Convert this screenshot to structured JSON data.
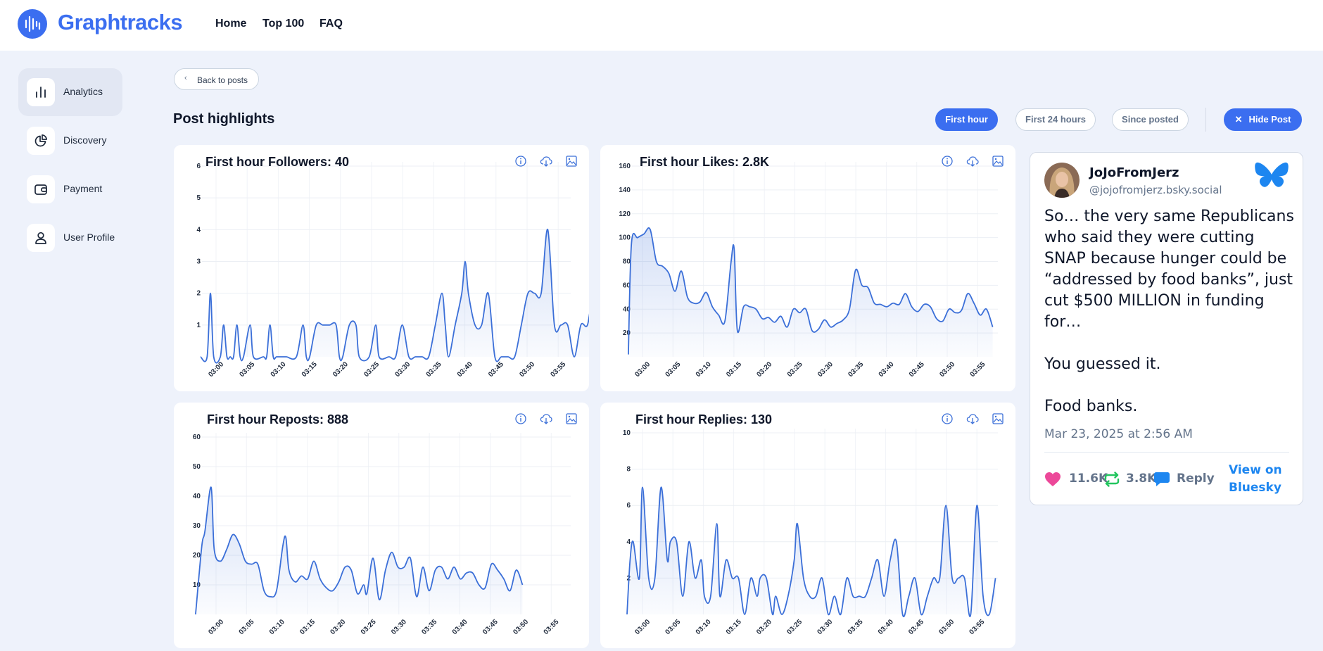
{
  "brand": {
    "name": "Graphtracks",
    "logo_icon": "equalizer-mic-icon",
    "accent": "#3b6ef0"
  },
  "nav": {
    "items": [
      "Home",
      "Top 100",
      "FAQ"
    ]
  },
  "sidebar": {
    "items": [
      {
        "label": "Analytics",
        "icon": "bar-chart-icon",
        "active": true
      },
      {
        "label": "Discovery",
        "icon": "pie-chart-icon",
        "active": false
      },
      {
        "label": "Payment",
        "icon": "wallet-icon",
        "active": false
      },
      {
        "label": "User Profile",
        "icon": "user-icon",
        "active": false
      }
    ]
  },
  "back_label": "Back to posts",
  "page_title": "Post highlights",
  "filters": {
    "first_hour": "First hour",
    "first_24": "First 24 hours",
    "since_posted": "Since posted",
    "hide_post": "Hide Post",
    "selected": "First hour"
  },
  "card_tools": [
    "info-icon",
    "cloud-download-icon",
    "image-download-icon"
  ],
  "chart_data": [
    {
      "type": "area",
      "title": "First hour Followers: 40",
      "categories": [
        "03:00",
        "03:05",
        "03:10",
        "03:15",
        "03:20",
        "03:25",
        "03:30",
        "03:35",
        "03:40",
        "03:45",
        "03:50",
        "03:55"
      ],
      "yticks": [
        1,
        2,
        3,
        4,
        5,
        6
      ],
      "ylim": [
        0,
        6
      ],
      "series_color": "#3b6fd8",
      "points": [
        [
          -1.5,
          0
        ],
        [
          -0.5,
          0
        ],
        [
          0,
          2
        ],
        [
          0.5,
          0
        ],
        [
          1.5,
          0
        ],
        [
          2,
          1
        ],
        [
          2.5,
          0
        ],
        [
          3,
          0
        ],
        [
          3.5,
          0
        ],
        [
          4,
          1
        ],
        [
          4.5,
          0
        ],
        [
          5,
          0
        ],
        [
          6,
          1
        ],
        [
          6.5,
          0
        ],
        [
          8,
          0
        ],
        [
          8.5,
          0
        ],
        [
          9,
          1
        ],
        [
          9.5,
          0
        ],
        [
          10,
          0
        ],
        [
          11,
          0
        ],
        [
          11.5,
          0
        ],
        [
          13,
          0
        ],
        [
          14,
          1
        ],
        [
          14.5,
          0
        ],
        [
          15,
          0
        ],
        [
          16,
          1
        ],
        [
          17,
          1
        ],
        [
          18,
          1
        ],
        [
          19,
          1
        ],
        [
          19.5,
          0
        ],
        [
          20,
          0
        ],
        [
          21,
          1
        ],
        [
          22,
          1
        ],
        [
          22.5,
          0
        ],
        [
          24,
          0
        ],
        [
          25,
          1
        ],
        [
          25.5,
          0
        ],
        [
          27,
          0
        ],
        [
          28,
          0
        ],
        [
          29,
          1
        ],
        [
          30,
          0
        ],
        [
          31,
          0
        ],
        [
          32,
          0
        ],
        [
          33,
          0
        ],
        [
          34,
          1
        ],
        [
          35,
          2
        ],
        [
          35.5,
          1
        ],
        [
          36,
          0
        ],
        [
          37,
          1
        ],
        [
          38,
          2
        ],
        [
          38.5,
          3
        ],
        [
          39,
          2
        ],
        [
          40,
          1
        ],
        [
          41,
          1
        ],
        [
          42,
          2
        ],
        [
          43,
          0
        ],
        [
          44,
          0
        ],
        [
          45,
          0
        ],
        [
          46,
          0
        ],
        [
          47,
          1
        ],
        [
          48,
          2
        ],
        [
          49,
          2
        ],
        [
          50,
          2
        ],
        [
          51,
          4
        ],
        [
          52,
          1
        ],
        [
          53,
          1
        ],
        [
          54,
          1
        ],
        [
          55,
          0
        ],
        [
          56,
          1
        ],
        [
          57,
          1
        ],
        [
          58,
          2
        ],
        [
          59,
          0
        ],
        [
          60,
          1
        ],
        [
          61,
          1
        ]
      ]
    },
    {
      "type": "area",
      "title": "First hour Likes: 2.8K",
      "categories": [
        "03:00",
        "03:05",
        "03:10",
        "03:15",
        "03:20",
        "03:25",
        "03:30",
        "03:35",
        "03:40",
        "03:45",
        "03:50",
        "03:55"
      ],
      "yticks": [
        20,
        40,
        60,
        80,
        100,
        120,
        140,
        160
      ],
      "ylim": [
        0,
        160
      ],
      "series_color": "#3b6fd8",
      "points": [
        [
          -2.5,
          2
        ],
        [
          -2,
          95
        ],
        [
          -1,
          100
        ],
        [
          0,
          103
        ],
        [
          1,
          107
        ],
        [
          2,
          80
        ],
        [
          3,
          76
        ],
        [
          4,
          70
        ],
        [
          5,
          55
        ],
        [
          6,
          72
        ],
        [
          7,
          50
        ],
        [
          8,
          45
        ],
        [
          9,
          46
        ],
        [
          10,
          54
        ],
        [
          11,
          42
        ],
        [
          12,
          35
        ],
        [
          13,
          30
        ],
        [
          14,
          80
        ],
        [
          14.5,
          90
        ],
        [
          15,
          22
        ],
        [
          16,
          42
        ],
        [
          17,
          42
        ],
        [
          18,
          40
        ],
        [
          19,
          32
        ],
        [
          20,
          33
        ],
        [
          21,
          29
        ],
        [
          22,
          34
        ],
        [
          23,
          25
        ],
        [
          24,
          40
        ],
        [
          25,
          37
        ],
        [
          26,
          40
        ],
        [
          27,
          22
        ],
        [
          28,
          23
        ],
        [
          29,
          31
        ],
        [
          30,
          25
        ],
        [
          31,
          28
        ],
        [
          32,
          31
        ],
        [
          33,
          40
        ],
        [
          34,
          73
        ],
        [
          35,
          60
        ],
        [
          36,
          58
        ],
        [
          37,
          45
        ],
        [
          38,
          44
        ],
        [
          39,
          42
        ],
        [
          40,
          45
        ],
        [
          41,
          44
        ],
        [
          42,
          53
        ],
        [
          43,
          42
        ],
        [
          44,
          38
        ],
        [
          45,
          44
        ],
        [
          46,
          42
        ],
        [
          47,
          32
        ],
        [
          48,
          30
        ],
        [
          49,
          40
        ],
        [
          50,
          37
        ],
        [
          51,
          39
        ],
        [
          52,
          53
        ],
        [
          53,
          45
        ],
        [
          54,
          35
        ],
        [
          55,
          40
        ],
        [
          56,
          25
        ]
      ]
    },
    {
      "type": "area",
      "title": "First hour Reposts: 888",
      "categories": [
        "03:00",
        "03:05",
        "03:10",
        "03:15",
        "03:20",
        "03:25",
        "03:30",
        "03:35",
        "03:40",
        "03:45",
        "03:50",
        "03:55"
      ],
      "yticks": [
        10,
        20,
        30,
        40,
        50,
        60
      ],
      "ylim": [
        0,
        60
      ],
      "series_color": "#3b6fd8",
      "points": [
        [
          -2.5,
          0
        ],
        [
          -1.5,
          23
        ],
        [
          -1,
          28
        ],
        [
          0,
          43
        ],
        [
          0.5,
          22
        ],
        [
          1.5,
          18
        ],
        [
          2.5,
          22
        ],
        [
          3.5,
          27
        ],
        [
          4.5,
          24
        ],
        [
          5.5,
          18
        ],
        [
          6.5,
          17
        ],
        [
          7.5,
          17
        ],
        [
          8.5,
          8
        ],
        [
          9.5,
          6
        ],
        [
          10.5,
          8
        ],
        [
          11.5,
          23
        ],
        [
          12,
          26
        ],
        [
          12.5,
          15
        ],
        [
          13.5,
          11
        ],
        [
          14.5,
          13
        ],
        [
          15.5,
          12
        ],
        [
          16.5,
          18
        ],
        [
          17.5,
          12
        ],
        [
          18.5,
          9
        ],
        [
          19.5,
          8
        ],
        [
          20.5,
          11
        ],
        [
          21.5,
          16
        ],
        [
          22.5,
          15
        ],
        [
          23.5,
          7
        ],
        [
          24.5,
          10
        ],
        [
          25,
          7
        ],
        [
          26,
          19
        ],
        [
          27,
          5
        ],
        [
          28,
          15
        ],
        [
          29,
          21
        ],
        [
          30,
          16
        ],
        [
          31,
          16
        ],
        [
          32,
          19
        ],
        [
          33,
          6
        ],
        [
          34,
          16
        ],
        [
          35,
          8
        ],
        [
          36,
          15
        ],
        [
          37,
          16
        ],
        [
          38,
          12
        ],
        [
          39,
          16
        ],
        [
          40,
          12
        ],
        [
          41,
          14
        ],
        [
          42,
          14
        ],
        [
          43,
          10
        ],
        [
          44,
          9
        ],
        [
          45,
          17
        ],
        [
          46,
          15
        ],
        [
          47,
          12
        ],
        [
          48,
          8
        ],
        [
          49,
          15
        ],
        [
          50,
          10
        ]
      ]
    },
    {
      "type": "area",
      "title": "First hour Replies: 130",
      "categories": [
        "03:00",
        "03:05",
        "03:10",
        "03:15",
        "03:20",
        "03:25",
        "03:30",
        "03:35",
        "03:40",
        "03:45",
        "03:50",
        "03:55"
      ],
      "yticks": [
        2,
        4,
        6,
        8,
        10
      ],
      "ylim": [
        0,
        10
      ],
      "series_color": "#3b6fd8",
      "points": [
        [
          -2.5,
          0
        ],
        [
          -2,
          3
        ],
        [
          -1.5,
          4
        ],
        [
          -0.5,
          2
        ],
        [
          0,
          7
        ],
        [
          1,
          2
        ],
        [
          2,
          2
        ],
        [
          3,
          7
        ],
        [
          4,
          3
        ],
        [
          4.5,
          4
        ],
        [
          5.5,
          4
        ],
        [
          6.5,
          1
        ],
        [
          7.5,
          4
        ],
        [
          8.5,
          2
        ],
        [
          9.5,
          3
        ],
        [
          10,
          1
        ],
        [
          11,
          1
        ],
        [
          12,
          5
        ],
        [
          12.5,
          1
        ],
        [
          13.5,
          3
        ],
        [
          14.5,
          2
        ],
        [
          15.5,
          2
        ],
        [
          16.5,
          0
        ],
        [
          17.5,
          2
        ],
        [
          18.5,
          1
        ],
        [
          19,
          2
        ],
        [
          20,
          2
        ],
        [
          21,
          0
        ],
        [
          21.5,
          1
        ],
        [
          22.5,
          0
        ],
        [
          23.5,
          1
        ],
        [
          24.5,
          3
        ],
        [
          25,
          5
        ],
        [
          26,
          2
        ],
        [
          27,
          1
        ],
        [
          28,
          1
        ],
        [
          29,
          2
        ],
        [
          30,
          0
        ],
        [
          31,
          1
        ],
        [
          32,
          0
        ],
        [
          33,
          2
        ],
        [
          34,
          1
        ],
        [
          35,
          1
        ],
        [
          36,
          1
        ],
        [
          37,
          2
        ],
        [
          38,
          3
        ],
        [
          39,
          1
        ],
        [
          40,
          3
        ],
        [
          41,
          4
        ],
        [
          42,
          0
        ],
        [
          43,
          1
        ],
        [
          44,
          2
        ],
        [
          45,
          0
        ],
        [
          46,
          1
        ],
        [
          47,
          2
        ],
        [
          48,
          2
        ],
        [
          49,
          6
        ],
        [
          50,
          2
        ],
        [
          51,
          2
        ],
        [
          52,
          2
        ],
        [
          53,
          0
        ],
        [
          54,
          6
        ],
        [
          55,
          1
        ],
        [
          56,
          0
        ],
        [
          57,
          2
        ]
      ]
    }
  ],
  "post": {
    "author": "JoJoFromJerz",
    "handle": "@jojofromjerz.bsky.social",
    "text": "So… the very same Republicans who said they were cutting SNAP because hunger could be “addressed by food banks”, just cut $500 MILLION in funding for…\n\nYou guessed it.\n\nFood banks.",
    "date": "Mar 23, 2025 at 2:56 AM",
    "likes": "11.6K",
    "reposts": "3.8K",
    "reply_label": "Reply",
    "view_label": "View on Bluesky",
    "like_color": "#ec4899",
    "repost_color": "#22c55e",
    "reply_color": "#1d86f0"
  }
}
